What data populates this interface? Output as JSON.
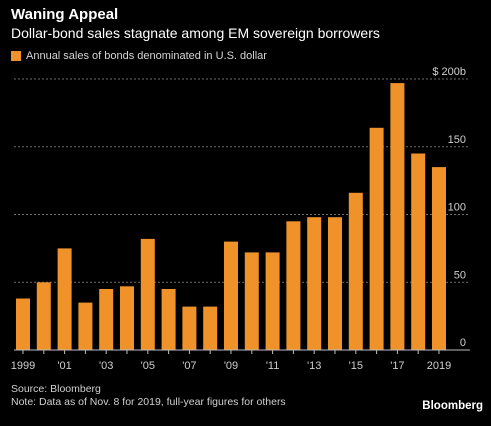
{
  "header": {
    "title": "Waning Appeal",
    "subtitle": "Dollar-bond sales stagnate among EM sovereign borrowers"
  },
  "footer": {
    "source": "Source: Bloomberg",
    "note": "Note: Data as of Nov. 8 for 2019, full-year figures for others",
    "brand": "Bloomberg"
  },
  "colors": {
    "bar": "#F0922A",
    "grid": "#6b6b6b",
    "axis_text": "#cfcfcf"
  },
  "chart_data": {
    "type": "bar",
    "title": "Waning Appeal",
    "subtitle": "Dollar-bond sales stagnate among EM sovereign borrowers",
    "xlabel": "",
    "ylabel": "",
    "categories": [
      "1999",
      "2000",
      "2001",
      "2002",
      "2003",
      "2004",
      "2005",
      "2006",
      "2007",
      "2008",
      "2009",
      "2010",
      "2011",
      "2012",
      "2013",
      "2014",
      "2015",
      "2016",
      "2017",
      "2018",
      "2019"
    ],
    "series": [
      {
        "name": "Annual sales of bonds denominated in U.S. dollar",
        "values": [
          38,
          50,
          75,
          35,
          45,
          47,
          82,
          45,
          32,
          32,
          80,
          72,
          72,
          95,
          98,
          98,
          116,
          164,
          197,
          145,
          135
        ]
      }
    ],
    "x_tick_labels": [
      "1999",
      "'01",
      "'03",
      "'05",
      "'07",
      "'09",
      "'11",
      "'13",
      "'15",
      "'17",
      "2019"
    ],
    "y_ticks": [
      0,
      50,
      100,
      150,
      200
    ],
    "y_tick_labels": [
      "0",
      "50",
      "100",
      "150",
      "$ 200b"
    ],
    "ylim": [
      0,
      200
    ],
    "grid": true,
    "legend": "top-left"
  }
}
